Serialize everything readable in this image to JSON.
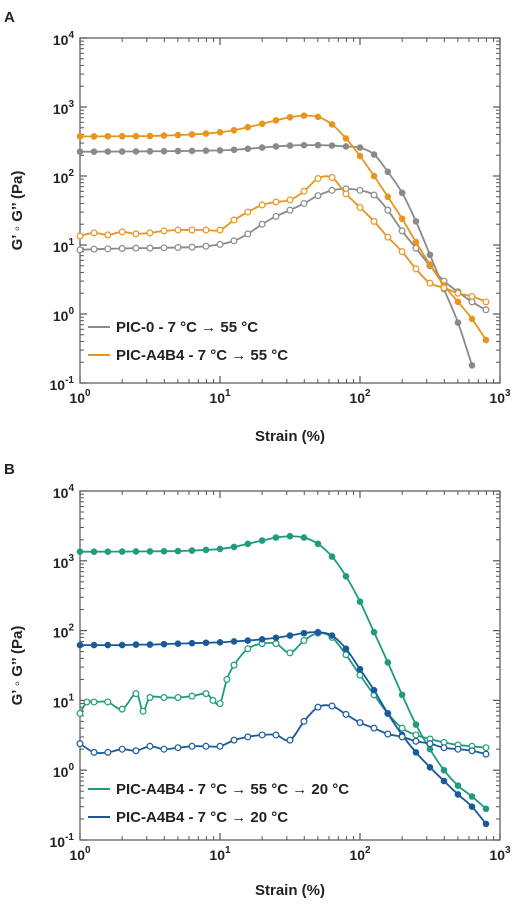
{
  "chart_data": [
    {
      "type": "line",
      "panel": "A",
      "x_scale": "log",
      "y_scale": "log",
      "xlim": [
        1,
        1000
      ],
      "ylim": [
        0.1,
        10000
      ],
      "xlabel": "Strain (%)",
      "ylabel": "G’ ◦ G’’ (Pa)",
      "x_tick_labels": [
        {
          "base": "10",
          "exp": "0"
        },
        {
          "base": "10",
          "exp": "1"
        },
        {
          "base": "10",
          "exp": "2"
        },
        {
          "base": "10",
          "exp": "3"
        }
      ],
      "y_tick_labels": [
        {
          "base": "10",
          "exp": "-1"
        },
        {
          "base": "10",
          "exp": "0"
        },
        {
          "base": "10",
          "exp": "1"
        },
        {
          "base": "10",
          "exp": "2"
        },
        {
          "base": "10",
          "exp": "3"
        },
        {
          "base": "10",
          "exp": "4"
        }
      ],
      "grid": false,
      "legend_position": "bottom-left",
      "series": [
        {
          "name": "PIC-0 - 7 °C → 55 °C",
          "color": "#8a8a8a",
          "show_in_legend": true,
          "modulus": "G'",
          "marker": "filled",
          "x": [
            1.0,
            1.26,
            1.58,
            2.0,
            2.51,
            3.16,
            3.98,
            5.01,
            6.31,
            7.94,
            10.0,
            12.6,
            15.8,
            20.0,
            25.1,
            31.6,
            39.8,
            50.1,
            63.1,
            79.4,
            100,
            126,
            158,
            200,
            251,
            316,
            398,
            501,
            631
          ],
          "y": [
            225,
            225,
            226,
            226,
            227,
            228,
            229,
            230,
            231,
            233,
            235,
            240,
            248,
            258,
            268,
            276,
            280,
            280,
            276,
            268,
            258,
            205,
            115,
            57,
            22,
            7.2,
            2.3,
            0.75,
            0.18
          ]
        },
        {
          "name": "PIC-0 G''",
          "color": "#8a8a8a",
          "show_in_legend": false,
          "modulus": "G''",
          "marker": "open",
          "x": [
            1.0,
            1.26,
            1.58,
            2.0,
            2.51,
            3.16,
            3.98,
            5.01,
            6.31,
            7.94,
            10.0,
            12.6,
            15.8,
            20.0,
            25.1,
            31.6,
            39.8,
            50.1,
            63.1,
            79.4,
            100,
            126,
            158,
            200,
            251,
            316,
            398,
            501,
            631,
            794
          ],
          "y": [
            8.5,
            8.7,
            8.8,
            8.9,
            9.0,
            9.0,
            9.1,
            9.2,
            9.3,
            9.6,
            10.2,
            11.5,
            14.5,
            20,
            26,
            32,
            40,
            52,
            62,
            65,
            62,
            53,
            32,
            16,
            9,
            5,
            3,
            2.1,
            1.5,
            1.15
          ]
        },
        {
          "name": "PIC-A4B4 - 7 °C → 55 °C",
          "color": "#e8951e",
          "show_in_legend": true,
          "modulus": "G'",
          "marker": "filled",
          "x": [
            1.0,
            1.26,
            1.58,
            2.0,
            2.51,
            3.16,
            3.98,
            5.01,
            6.31,
            7.94,
            10.0,
            12.6,
            15.8,
            20.0,
            25.1,
            31.6,
            39.8,
            50.1,
            63.1,
            79.4,
            100,
            126,
            158,
            200,
            251,
            316,
            398,
            501,
            631,
            794
          ],
          "y": [
            375,
            375,
            376,
            377,
            378,
            380,
            385,
            392,
            400,
            412,
            430,
            460,
            510,
            570,
            640,
            710,
            750,
            720,
            560,
            350,
            195,
            100,
            50,
            24,
            11,
            5.2,
            2.6,
            1.5,
            0.85,
            0.42
          ]
        },
        {
          "name": "PIC-A4B4 G''",
          "color": "#e8951e",
          "show_in_legend": false,
          "modulus": "G''",
          "marker": "open",
          "x": [
            1.0,
            1.26,
            1.58,
            2.0,
            2.51,
            3.16,
            3.98,
            5.01,
            6.31,
            7.94,
            10.0,
            12.6,
            15.8,
            20.0,
            25.1,
            31.6,
            39.8,
            50.1,
            63.1,
            79.4,
            100,
            126,
            158,
            200,
            251,
            316,
            398,
            501,
            631,
            794
          ],
          "y": [
            13.5,
            15,
            14,
            15.5,
            14.5,
            15,
            16,
            16.5,
            16.5,
            16.5,
            16.5,
            23,
            30,
            38,
            42,
            45,
            60,
            92,
            95,
            55,
            35,
            22,
            13,
            8,
            4.5,
            2.8,
            2.4,
            2.0,
            1.8,
            1.5
          ]
        }
      ]
    },
    {
      "type": "line",
      "panel": "B",
      "x_scale": "log",
      "y_scale": "log",
      "xlim": [
        1,
        1000
      ],
      "ylim": [
        0.1,
        10000
      ],
      "xlabel": "Strain (%)",
      "ylabel": "G’ ◦ G’’ (Pa)",
      "x_tick_labels": [
        {
          "base": "10",
          "exp": "0"
        },
        {
          "base": "10",
          "exp": "1"
        },
        {
          "base": "10",
          "exp": "2"
        },
        {
          "base": "10",
          "exp": "3"
        }
      ],
      "y_tick_labels": [
        {
          "base": "10",
          "exp": "-1"
        },
        {
          "base": "10",
          "exp": "0"
        },
        {
          "base": "10",
          "exp": "1"
        },
        {
          "base": "10",
          "exp": "2"
        },
        {
          "base": "10",
          "exp": "3"
        },
        {
          "base": "10",
          "exp": "4"
        }
      ],
      "grid": false,
      "legend_position": "bottom-left",
      "series": [
        {
          "name": "PIC-A4B4 - 7 °C → 55 °C → 20 °C",
          "color": "#1e9c7c",
          "show_in_legend": true,
          "modulus": "G'",
          "marker": "filled",
          "x": [
            1.0,
            1.26,
            1.58,
            2.0,
            2.51,
            3.16,
            3.98,
            5.01,
            6.31,
            7.94,
            10.0,
            12.6,
            15.8,
            20.0,
            25.1,
            31.6,
            39.8,
            50.1,
            63.1,
            79.4,
            100,
            126,
            158,
            200,
            251,
            316,
            398,
            501,
            631,
            794
          ],
          "y": [
            1350,
            1350,
            1352,
            1355,
            1360,
            1365,
            1370,
            1380,
            1400,
            1430,
            1480,
            1580,
            1750,
            1950,
            2150,
            2250,
            2150,
            1750,
            1150,
            600,
            260,
            95,
            35,
            12,
            4.5,
            2.0,
            1.0,
            0.6,
            0.42,
            0.28
          ]
        },
        {
          "name": "PIC-A4B4 55-20 G''",
          "color": "#1e9c7c",
          "show_in_legend": false,
          "modulus": "G''",
          "marker": "open",
          "x": [
            1.0,
            1.12,
            1.26,
            1.58,
            2.0,
            2.51,
            2.82,
            3.16,
            3.98,
            5.01,
            6.31,
            7.94,
            8.91,
            10.0,
            11.2,
            12.6,
            15.8,
            20.0,
            25.1,
            31.6,
            39.8,
            50.1,
            63.1,
            79.4,
            100,
            126,
            158,
            200,
            251,
            316,
            398,
            501,
            631,
            794
          ],
          "y": [
            6.5,
            9.5,
            9.5,
            9.5,
            7.5,
            12.5,
            7,
            11,
            11,
            11,
            11.5,
            12.5,
            10,
            9,
            20,
            32,
            55,
            65,
            65,
            48,
            72,
            92,
            80,
            45,
            23,
            12,
            6.5,
            4.0,
            3.2,
            2.8,
            2.5,
            2.3,
            2.2,
            2.1
          ]
        },
        {
          "name": "PIC-A4B4 - 7 °C → 20 °C",
          "color": "#1a5a9a",
          "show_in_legend": true,
          "modulus": "G'",
          "marker": "filled",
          "x": [
            1.0,
            1.26,
            1.58,
            2.0,
            2.51,
            3.16,
            3.98,
            5.01,
            6.31,
            7.94,
            10.0,
            12.6,
            15.8,
            20.0,
            25.1,
            31.6,
            39.8,
            50.1,
            63.1,
            79.4,
            100,
            126,
            158,
            200,
            251,
            316,
            398,
            501,
            631,
            794
          ],
          "y": [
            62,
            62,
            62,
            62,
            63,
            63,
            64,
            65,
            66,
            67,
            68,
            70,
            72,
            75,
            79,
            85,
            92,
            95,
            85,
            55,
            28,
            14,
            6.5,
            3.2,
            1.8,
            1.1,
            0.7,
            0.45,
            0.3,
            0.17
          ]
        },
        {
          "name": "PIC-A4B4 20 G''",
          "color": "#1a5a9a",
          "show_in_legend": false,
          "modulus": "G''",
          "marker": "open",
          "x": [
            1.0,
            1.26,
            1.58,
            2.0,
            2.51,
            3.16,
            3.98,
            5.01,
            6.31,
            7.94,
            10.0,
            12.6,
            15.8,
            20.0,
            25.1,
            31.6,
            39.8,
            50.1,
            63.1,
            79.4,
            100,
            126,
            158,
            200,
            251,
            316,
            398,
            501,
            631,
            794
          ],
          "y": [
            2.4,
            1.8,
            1.8,
            2.0,
            1.9,
            2.2,
            2.0,
            2.1,
            2.2,
            2.2,
            2.2,
            2.7,
            3.0,
            3.2,
            3.2,
            2.7,
            5.0,
            8.0,
            8.3,
            6.3,
            4.8,
            4.0,
            3.3,
            3.0,
            2.6,
            2.4,
            2.1,
            2.0,
            1.9,
            1.7
          ]
        }
      ]
    }
  ]
}
